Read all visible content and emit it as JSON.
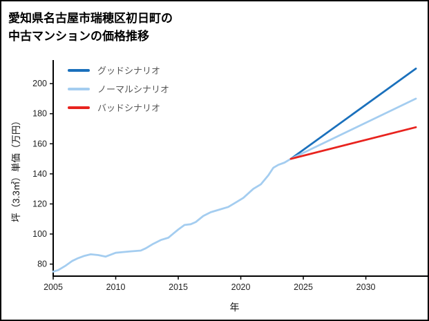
{
  "header": {
    "title_lines": [
      "愛知県名古屋市瑞穂区初日町の",
      "中古マンションの価格推移"
    ]
  },
  "chart_data": {
    "type": "line",
    "title": "愛知県名古屋市瑞穂区初日町の中古マンションの価格推移",
    "xlabel": "年",
    "ylabel": "坪（3.3㎡）単価（万円）",
    "xlim": [
      2005,
      2034
    ],
    "ylim": [
      72,
      212
    ],
    "xticks": [
      2005,
      2010,
      2015,
      2020,
      2025,
      2030
    ],
    "yticks": [
      80,
      100,
      120,
      140,
      160,
      180,
      200
    ],
    "grid": false,
    "legend_position": "upper-left",
    "series": [
      {
        "key": "historical",
        "label": "",
        "color": "#a4cdf0",
        "x": [
          2005,
          2005.4,
          2006,
          2006.5,
          2007,
          2007.5,
          2008,
          2008.6,
          2009.2,
          2010,
          2010.6,
          2011.2,
          2012,
          2012.4,
          2013,
          2013.6,
          2014.2,
          2015,
          2015.5,
          2016,
          2016.4,
          2017,
          2017.6,
          2018.2,
          2019,
          2019.6,
          2020.2,
          2021,
          2021.6,
          2022.2,
          2022.6,
          2023,
          2023.5,
          2024
        ],
        "y": [
          75,
          76,
          79,
          82,
          84,
          85.5,
          86.5,
          86,
          85,
          87.5,
          88,
          88.5,
          89,
          90.5,
          93.5,
          96,
          97.5,
          103,
          106,
          106.5,
          108,
          112,
          114.5,
          116,
          118,
          121,
          124,
          130,
          133,
          139,
          144,
          146,
          147.5,
          150
        ]
      },
      {
        "key": "good-scenario",
        "label": "グッドシナリオ",
        "color": "#1a70bc",
        "x": [
          2024,
          2034
        ],
        "y": [
          150,
          210
        ]
      },
      {
        "key": "normal-scenario",
        "label": "ノーマルシナリオ",
        "color": "#a4cdf0",
        "x": [
          2024,
          2034
        ],
        "y": [
          150,
          190
        ]
      },
      {
        "key": "bad-scenario",
        "label": "バッドシナリオ",
        "color": "#e8231e",
        "x": [
          2024,
          2034
        ],
        "y": [
          150,
          171
        ]
      }
    ]
  }
}
